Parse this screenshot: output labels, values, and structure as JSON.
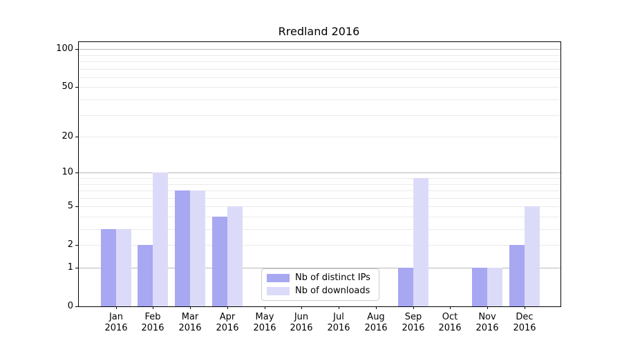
{
  "title": "Rredland 2016",
  "colors": {
    "distinct_ips_bar": "#a7a7f2",
    "downloads_bar": "#dbdbf9",
    "grid_major": "#b8b8b8",
    "grid_minor": "#eaeaea",
    "axis": "#000000",
    "legend_border": "#cccccc",
    "background": "#ffffff"
  },
  "legend": {
    "position": "lower center"
  },
  "chart_data": {
    "type": "bar",
    "title": "Rredland 2016",
    "categories": [
      "Jan 2016",
      "Feb 2016",
      "Mar 2016",
      "Apr 2016",
      "May 2016",
      "Jun 2016",
      "Jul 2016",
      "Aug 2016",
      "Sep 2016",
      "Oct 2016",
      "Nov 2016",
      "Dec 2016"
    ],
    "series": [
      {
        "name": "Nb of distinct IPs",
        "color": "#a7a7f2",
        "values": [
          3,
          2,
          7,
          4,
          0,
          0,
          0,
          0,
          1,
          0,
          1,
          2
        ]
      },
      {
        "name": "Nb of downloads",
        "color": "#dbdbf9",
        "values": [
          3,
          10,
          7,
          5,
          0,
          0,
          0,
          0,
          9,
          0,
          1,
          5
        ]
      }
    ],
    "xlabel": "",
    "ylabel": "",
    "yscale": "log1p",
    "ylim": [
      0,
      114
    ],
    "yticks": [
      0,
      1,
      2,
      5,
      10,
      20,
      50,
      100
    ],
    "major_gridlines": [
      1,
      10,
      100
    ],
    "minor_gridlines": [
      2,
      3,
      4,
      5,
      6,
      7,
      8,
      9,
      20,
      30,
      40,
      50,
      60,
      70,
      80,
      90
    ],
    "grid": "y",
    "legend_position": "lower center"
  }
}
